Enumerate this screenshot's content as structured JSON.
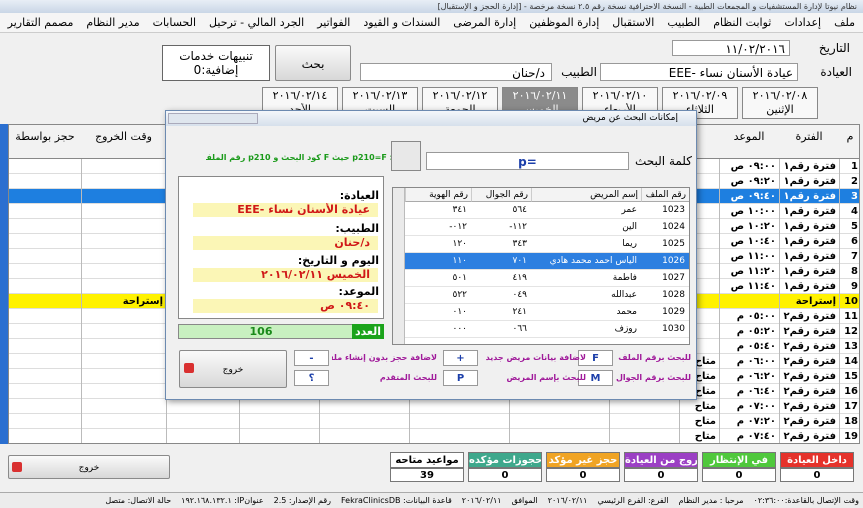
{
  "title_bar": "نظام نيوتا لإدارة المستشفيات و المجمعات الطبية - النسخة الاحترافية نسخة رقم ٢.٥ نسخة مرخصة - [إدارة الحجز و الإستقبال]",
  "menu": [
    "ملف",
    "إعدادات",
    "ثوابت النظام",
    "الطبيب",
    "الاستقبال",
    "إدارة الموظفين",
    "إدارة المرضى",
    "السندات و القيود",
    "الفواتير",
    "الجرد المالي - ترحيل",
    "الحسابات",
    "مدير النظام",
    "مصمم التقارير",
    "خدمات إضافية"
  ],
  "form": {
    "date_label": "التاريخ",
    "date": "١١/٠٢/٢٠١٦",
    "clinic_label": "العيادة",
    "clinic": "عيادة الأسنان نساء -EEE",
    "doctor_label": "الطبيب",
    "doctor": "د/حنان",
    "search_button": "بحث",
    "alerts": "تنبيهات خدمات إضافية:0"
  },
  "day_tabs": {
    "selected": 3,
    "tabs": [
      {
        "date": "٢٠١٦/٠٢/٠٨",
        "day": "الإثنين"
      },
      {
        "date": "٢٠١٦/٠٢/٠٩",
        "day": "الثلاثاء"
      },
      {
        "date": "٢٠١٦/٠٢/١٠",
        "day": "الأربعاء"
      },
      {
        "date": "٢٠١٦/٠٢/١١",
        "day": "الخميس"
      },
      {
        "date": "٢٠١٦/٠٢/١٢",
        "day": "الجمعة"
      },
      {
        "date": "٢٠١٦/٠٢/١٣",
        "day": "السبت"
      },
      {
        "date": "٢٠١٦/٠٢/١٤",
        "day": "الأحد"
      }
    ]
  },
  "grid": {
    "selected_row": 2,
    "columns": {
      "no": "م",
      "period": "الفترة",
      "time": "الموعد",
      "exit": "وقت الخروج",
      "booked_by": "حجز بواسطة"
    },
    "rows": [
      {
        "no": "1",
        "period": "فترة رقم١",
        "time": "٠٩:٠٠ ص"
      },
      {
        "no": "2",
        "period": "فترة رقم١",
        "time": "٠٩:٢٠ ص"
      },
      {
        "no": "3",
        "period": "فترة رقم١",
        "time": "٠٩:٤٠ ص"
      },
      {
        "no": "4",
        "period": "فترة رقم١",
        "time": "١٠:٠٠ ص"
      },
      {
        "no": "5",
        "period": "فترة رقم١",
        "time": "١٠:٢٠ ص"
      },
      {
        "no": "6",
        "period": "فترة رقم١",
        "time": "١٠:٤٠ ص"
      },
      {
        "no": "7",
        "period": "فترة رقم١",
        "time": "١١:٠٠ ص"
      },
      {
        "no": "8",
        "period": "فترة رقم١",
        "time": "١١:٢٠ ص"
      },
      {
        "no": "9",
        "period": "فترة رقم١",
        "time": "١١:٤٠ ص"
      },
      {
        "no": "10",
        "period": "إستراحة",
        "exit": "إستراحة",
        "break": true
      },
      {
        "no": "11",
        "period": "فترة رقم٢",
        "time": "٠٥:٠٠ م"
      },
      {
        "no": "12",
        "period": "فترة رقم٢",
        "time": "٠٥:٢٠ م"
      },
      {
        "no": "13",
        "period": "فترة رقم٢",
        "time": "٠٥:٤٠ م"
      },
      {
        "no": "14",
        "period": "فترة رقم٢",
        "time": "٠٦:٠٠ م",
        "status": "متاح"
      },
      {
        "no": "15",
        "period": "فترة رقم٢",
        "time": "٠٦:٢٠ م",
        "status": "متاح"
      },
      {
        "no": "16",
        "period": "فترة رقم٢",
        "time": "٠٦:٤٠ م",
        "status": "متاح"
      },
      {
        "no": "17",
        "period": "فترة رقم٢",
        "time": "٠٧:٠٠ م",
        "status": "متاح"
      },
      {
        "no": "18",
        "period": "فترة رقم٢",
        "time": "٠٧:٢٠ م",
        "status": "متاح"
      },
      {
        "no": "19",
        "period": "فترة رقم٢",
        "time": "٠٧:٤٠ م",
        "status": "متاح"
      }
    ]
  },
  "dialog": {
    "title": "إمكانات البحث عن مريض",
    "hint": "مثال: p210=F حيث F كود البحث و p210 رقم الملف",
    "search_label": "كلمة البحث",
    "search_value": "p=",
    "info": {
      "clinic_label": "العيادة:",
      "clinic": "عيادة الأسنان نساء -EEE",
      "doctor_label": "الطبيب:",
      "doctor": "د/حنان",
      "day_label": "اليوم و التاريخ:",
      "day": "الخميس ٢٠١٦/٠٢/١١",
      "time_label": "الموعد:",
      "time": "٠٩:٤٠ ص"
    },
    "count_label": "العدد",
    "count": "106",
    "table": {
      "selected_row": 3,
      "columns": [
        "رقم الملف",
        "إسم المريض",
        "رقم الجوال",
        "رقم الهوية"
      ],
      "rows": [
        [
          "1023",
          "عمر",
          "٥٦٤",
          "٣٤١"
        ],
        [
          "1024",
          "الين",
          "١١٢-",
          "٠١٢-"
        ],
        [
          "1025",
          "ريما",
          "٣٤٣",
          "١٢٠"
        ],
        [
          "1026",
          "الياس احمد محمد هادي",
          "٧٠١",
          "١١٠"
        ],
        [
          "1027",
          "فاطمة",
          "٤١٩",
          "٥٠١"
        ],
        [
          "1028",
          "عبدالله",
          "٠٤٩",
          "٥٢٢"
        ],
        [
          "1029",
          "محمد",
          "٢٤١",
          "٠١٠"
        ],
        [
          "1030",
          "روزف",
          "٠٦٦",
          "٠٠٠"
        ]
      ]
    },
    "shortcuts": [
      {
        "key": "F",
        "label": "للبحث برقم الملف"
      },
      {
        "key": "M",
        "label": "للبحث برقم الجوال"
      },
      {
        "key": "+",
        "label": "لاضافة بيانات مريض جديد"
      },
      {
        "key": "P",
        "label": "للبحث بإسم المريض"
      },
      {
        "key": "-",
        "label": "لاضافة حجز بدون إنشاء ملف"
      },
      {
        "key": "؟",
        "label": "للبحث المتقدم"
      }
    ],
    "exit_button": "خروج"
  },
  "exit_button": "خروج",
  "legend": [
    {
      "label": "داخل العيادة",
      "color": "#e5322b",
      "count": "0"
    },
    {
      "label": "في الإنتظار",
      "color": "#4fc83c",
      "count": "0"
    },
    {
      "label": "خروج من العيادة",
      "color": "#9b3fc4",
      "count": "0"
    },
    {
      "label": "حجز غير مؤكد",
      "color": "#f0a424",
      "count": "0"
    },
    {
      "label": "حجوزات مؤكده",
      "color": "#3ea88c",
      "count": "0"
    },
    {
      "label": "مواعيد متاحه",
      "color": "#ffffff",
      "count": "39"
    }
  ],
  "status_bar": [
    "وقت الإتصال بالقاعدة:٠٢:٣٦:٠٠",
    "مرحبا : مدير النظام",
    "الفرع: الفرع الرئيسي",
    "٢٠١٦/٠٢/١١",
    "الموافق",
    "٢٠١٦/٠٢/١١",
    "قاعدة البيانات: FekraClinicsDB",
    "رقم الإصدار: 2.5",
    "عنوانIP: ١٩٢.١٦٨.١٣٢.١",
    "حالة الاتصال: متصل"
  ]
}
